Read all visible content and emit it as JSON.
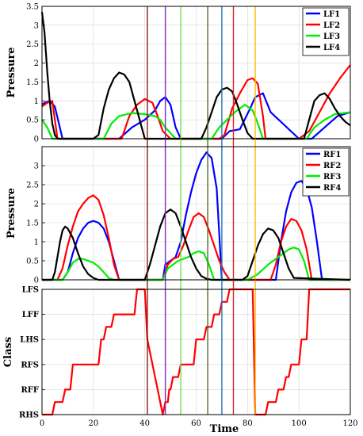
{
  "chart_data": [
    {
      "type": "line",
      "ylabel": "Pressure",
      "xlabel": "",
      "xlim": [
        0,
        120
      ],
      "ylim": [
        0,
        3.5
      ],
      "xticks": [],
      "yticks": [
        "0",
        "0.5",
        "1",
        "1.5",
        "2",
        "2.5",
        "3",
        "3.5"
      ],
      "ytick_values": [
        0,
        0.5,
        1,
        1.5,
        2,
        2.5,
        3,
        3.5
      ],
      "grid": true,
      "legend_position": "top-right",
      "series": [
        {
          "name": "LF1",
          "color": "#0000ff",
          "x": [
            0,
            1,
            3,
            5,
            8,
            25,
            30,
            35,
            40,
            44,
            46,
            48,
            50,
            52,
            54,
            70,
            73,
            77,
            81,
            83,
            86,
            89,
            100,
            105,
            110,
            115,
            120
          ],
          "y": [
            0.9,
            0.95,
            1.0,
            0.85,
            0,
            0,
            0,
            0.3,
            0.5,
            0.75,
            1.0,
            1.1,
            0.9,
            0.3,
            0,
            0,
            0.2,
            0.25,
            0.8,
            1.1,
            1.2,
            0.7,
            0,
            0,
            0.3,
            0.6,
            0.7
          ]
        },
        {
          "name": "LF2",
          "color": "#ff0000",
          "x": [
            0,
            2,
            4,
            6,
            26,
            28,
            31,
            34,
            37,
            40,
            43,
            45,
            47,
            50,
            69,
            71,
            74,
            77,
            80,
            82,
            84,
            86,
            87,
            90,
            100,
            104,
            108,
            112,
            116,
            120
          ],
          "y": [
            0.85,
            0.95,
            1.0,
            0,
            0,
            0,
            0,
            0.6,
            0.9,
            1.05,
            0.95,
            0.6,
            0.2,
            0,
            0,
            0.1,
            0.8,
            1.2,
            1.55,
            1.6,
            1.45,
            0.6,
            0,
            0,
            0,
            0.2,
            0.7,
            1.2,
            1.6,
            1.95
          ]
        },
        {
          "name": "LF3",
          "color": "#00ee00",
          "x": [
            0,
            2,
            4,
            22,
            24,
            27,
            30,
            35,
            40,
            44,
            46,
            48,
            52,
            66,
            69,
            72,
            75,
            79,
            82,
            84,
            86,
            103,
            106,
            110,
            114,
            120
          ],
          "y": [
            0.5,
            0.3,
            0,
            0,
            0,
            0.4,
            0.6,
            0.68,
            0.65,
            0.6,
            0.5,
            0.3,
            0,
            0,
            0.3,
            0.5,
            0.7,
            0.9,
            0.75,
            0.4,
            0,
            0,
            0.3,
            0.5,
            0.65,
            0.7
          ]
        },
        {
          "name": "LF4",
          "color": "#000000",
          "x": [
            0,
            1,
            2,
            3,
            4,
            5,
            6,
            20,
            22,
            24,
            26,
            28,
            30,
            32,
            34,
            36,
            38,
            40,
            62,
            64,
            66,
            68,
            70,
            72,
            74,
            76,
            78,
            80,
            82,
            102,
            104,
            106,
            108,
            110,
            112,
            114,
            116,
            118,
            120
          ],
          "y": [
            3.35,
            2.8,
            1.8,
            1.0,
            0.4,
            0.1,
            0,
            0,
            0.1,
            0.8,
            1.3,
            1.6,
            1.75,
            1.7,
            1.5,
            1.0,
            0.5,
            0,
            0,
            0.3,
            0.7,
            1.1,
            1.3,
            1.35,
            1.25,
            0.9,
            0.5,
            0.15,
            0,
            0,
            0.5,
            1.0,
            1.15,
            1.2,
            1.05,
            0.8,
            0.6,
            0.45,
            0.35
          ]
        }
      ]
    },
    {
      "type": "line",
      "ylabel": "Pressure",
      "xlabel": "",
      "xlim": [
        0,
        120
      ],
      "ylim": [
        0,
        3.5
      ],
      "xticks": [],
      "yticks": [
        "0",
        "0.5",
        "1",
        "1.5",
        "2",
        "2.5",
        "3"
      ],
      "ytick_values": [
        0,
        0.5,
        1,
        1.5,
        2,
        2.5,
        3
      ],
      "grid": true,
      "legend_position": "top-right",
      "series": [
        {
          "name": "RF1",
          "color": "#0000ff",
          "x": [
            0,
            8,
            10,
            12,
            14,
            16,
            18,
            20,
            22,
            24,
            26,
            28,
            30,
            40,
            47,
            48,
            50,
            52,
            54,
            56,
            58,
            60,
            62,
            64,
            66,
            68,
            70,
            91,
            93,
            95,
            97,
            99,
            101,
            103,
            105,
            107,
            109,
            120
          ],
          "y": [
            0,
            0,
            0.2,
            0.7,
            1.1,
            1.35,
            1.5,
            1.55,
            1.5,
            1.35,
            1.0,
            0.5,
            0,
            0,
            0,
            0.4,
            0.5,
            0.6,
            1.0,
            1.7,
            2.3,
            2.8,
            3.15,
            3.35,
            3.2,
            2.4,
            0,
            0,
            1.0,
            1.8,
            2.3,
            2.55,
            2.6,
            2.4,
            1.9,
            1.0,
            0,
            0
          ]
        },
        {
          "name": "RF2",
          "color": "#ff0000",
          "x": [
            0,
            6,
            8,
            10,
            12,
            14,
            16,
            18,
            20,
            22,
            24,
            26,
            28,
            30,
            40,
            47,
            49,
            51,
            53,
            55,
            57,
            59,
            61,
            63,
            65,
            67,
            69,
            71,
            73,
            89,
            91,
            93,
            95,
            97,
            99,
            101,
            103,
            105,
            120
          ],
          "y": [
            0,
            0,
            0.3,
            0.9,
            1.4,
            1.8,
            2.0,
            2.15,
            2.22,
            2.1,
            1.7,
            1.1,
            0.4,
            0,
            0,
            0,
            0.4,
            0.55,
            0.6,
            0.9,
            1.3,
            1.65,
            1.75,
            1.65,
            1.3,
            0.9,
            0.5,
            0.2,
            0,
            0,
            0.4,
            1.0,
            1.4,
            1.6,
            1.55,
            1.3,
            0.8,
            0,
            0
          ]
        },
        {
          "name": "RF3",
          "color": "#00ee00",
          "x": [
            0,
            8,
            10,
            12,
            14,
            16,
            18,
            20,
            22,
            24,
            26,
            28,
            40,
            47,
            49,
            51,
            53,
            55,
            57,
            59,
            61,
            63,
            65,
            67,
            80,
            84,
            88,
            92,
            96,
            98,
            100,
            102,
            104,
            120
          ],
          "y": [
            0,
            0,
            0.2,
            0.45,
            0.55,
            0.55,
            0.5,
            0.45,
            0.35,
            0.2,
            0.05,
            0,
            0,
            0,
            0.3,
            0.4,
            0.5,
            0.55,
            0.6,
            0.7,
            0.75,
            0.7,
            0.4,
            0,
            0,
            0.15,
            0.4,
            0.6,
            0.8,
            0.85,
            0.8,
            0.5,
            0,
            0
          ]
        },
        {
          "name": "RF4",
          "color": "#000000",
          "x": [
            0,
            4,
            5,
            6,
            7,
            8,
            9,
            10,
            12,
            14,
            16,
            18,
            20,
            22,
            38,
            40,
            42,
            44,
            46,
            48,
            50,
            52,
            54,
            56,
            58,
            60,
            62,
            64,
            66,
            78,
            80,
            82,
            84,
            86,
            88,
            90,
            92,
            94,
            96,
            98,
            120
          ],
          "y": [
            0,
            0,
            0.2,
            0.6,
            1.0,
            1.3,
            1.4,
            1.35,
            1.1,
            0.7,
            0.35,
            0.15,
            0.05,
            0,
            0,
            0,
            0.4,
            0.9,
            1.4,
            1.75,
            1.85,
            1.75,
            1.4,
            1.0,
            0.6,
            0.3,
            0.1,
            0.03,
            0,
            0,
            0.1,
            0.5,
            0.9,
            1.2,
            1.35,
            1.3,
            1.1,
            0.7,
            0.3,
            0.05,
            0
          ]
        }
      ]
    },
    {
      "type": "line",
      "ylabel": "Class",
      "xlabel": "Time",
      "xlim": [
        0,
        120
      ],
      "ylim": [
        0,
        5
      ],
      "xticks": [
        "0",
        "20",
        "40",
        "60",
        "80",
        "100",
        "120"
      ],
      "xtick_values": [
        0,
        20,
        40,
        60,
        80,
        100,
        120
      ],
      "yticks": [
        "RHS",
        "RFF",
        "RFS",
        "LHS",
        "LFF",
        "LFS"
      ],
      "ytick_values": [
        0,
        1,
        2,
        3,
        4,
        5
      ],
      "grid": true,
      "series": [
        {
          "name": "",
          "color": "#ff0000",
          "x": [
            0,
            4,
            5,
            8,
            9,
            11,
            12,
            22,
            23,
            24,
            25,
            27,
            28,
            36,
            37,
            40,
            41,
            47,
            48,
            49,
            49.5,
            50,
            51,
            53,
            54,
            59,
            60,
            63,
            64,
            66,
            67,
            69,
            70,
            72,
            73,
            74,
            75,
            82,
            83,
            87,
            88,
            91,
            92,
            94,
            95,
            96,
            97,
            100,
            101,
            103,
            104,
            120
          ],
          "y": [
            0,
            0,
            0.5,
            0.5,
            1,
            1,
            2,
            2,
            3,
            3,
            3.5,
            3.5,
            4,
            4,
            5,
            5,
            3,
            0,
            0.5,
            0.5,
            1,
            1,
            1.5,
            1.5,
            2,
            2,
            3,
            3,
            3.5,
            3.5,
            4,
            4,
            4.5,
            4.5,
            5,
            5,
            5,
            5,
            0,
            0,
            0.5,
            0.5,
            1,
            1,
            1.5,
            1.5,
            2,
            2,
            3,
            3,
            5,
            5
          ]
        }
      ]
    }
  ],
  "vertical_markers": [
    {
      "x": 41,
      "color": "#8b1a1a"
    },
    {
      "x": 48,
      "color": "#7b2fbe"
    },
    {
      "x": 54,
      "color": "#77dd44"
    },
    {
      "x": 64.5,
      "color": "#556b2f"
    },
    {
      "x": 70,
      "color": "#1f77b4"
    },
    {
      "x": 74.5,
      "color": "#dd2222"
    },
    {
      "x": 83,
      "color": "#ffbb00"
    }
  ]
}
